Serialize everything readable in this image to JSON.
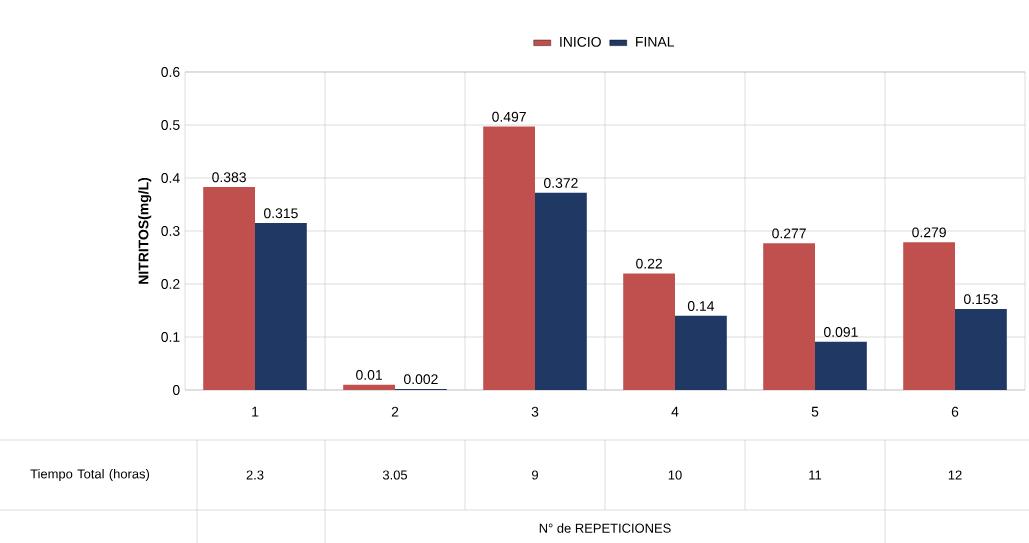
{
  "chart_data": {
    "type": "bar",
    "ylabel": "NITRITOS(mg/L)",
    "categories": [
      "1",
      "2",
      "3",
      "4",
      "5",
      "6"
    ],
    "series": [
      {
        "name": "INICIO",
        "color": "#c0504d",
        "values": [
          0.383,
          0.01,
          0.497,
          0.22,
          0.277,
          0.279
        ],
        "value_labels": [
          "0.383",
          "0.01",
          "0.497",
          "0.22",
          "0.277",
          "0.279"
        ]
      },
      {
        "name": "FINAL",
        "color": "#1f3864",
        "values": [
          0.315,
          0.002,
          0.372,
          0.14,
          0.091,
          0.153
        ],
        "value_labels": [
          "0.315",
          "0.002",
          "0.372",
          "0.14",
          "0.091",
          "0.153"
        ]
      }
    ],
    "ylim": [
      0,
      0.6
    ],
    "yticks": [
      0,
      0.1,
      0.2,
      0.3,
      0.4,
      0.5,
      0.6
    ],
    "grid": true,
    "legend": "top",
    "annotations": [
      "Tiempo Total (horas)",
      "2.3",
      "3.05",
      "9",
      "10",
      "11",
      "12",
      "N° de REPETICIONES"
    ]
  }
}
